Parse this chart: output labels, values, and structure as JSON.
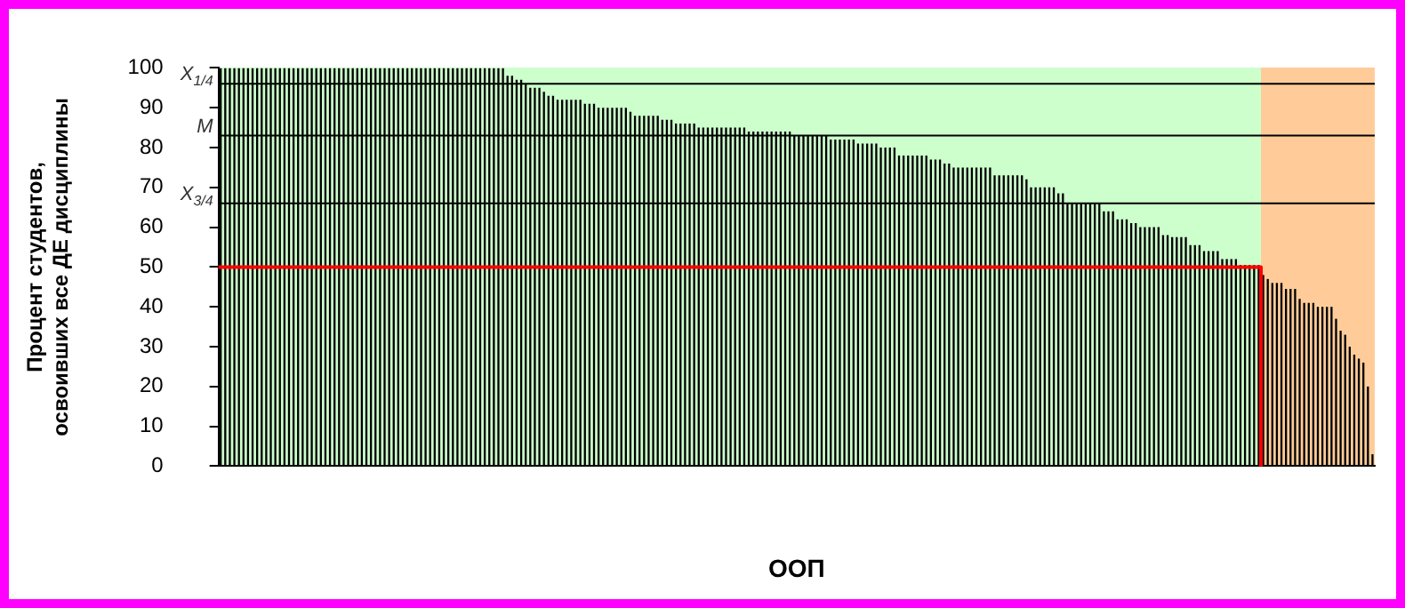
{
  "chart_data": {
    "type": "bar",
    "xlabel": "ООП",
    "ylabel": "Процент студентов, освоивших все ДЕ дисциплины",
    "categories": [
      null,
      null,
      null,
      null,
      null,
      null,
      null,
      null,
      null,
      null,
      null,
      null,
      null,
      null,
      null,
      null,
      null,
      null,
      null,
      null,
      null,
      null,
      null,
      null,
      null,
      null,
      null,
      null,
      null,
      null,
      null,
      null,
      null,
      null,
      null,
      null,
      null,
      null,
      null,
      null,
      null,
      null,
      null,
      null,
      null,
      null,
      null,
      null,
      null,
      null,
      null,
      null,
      null,
      null,
      null,
      null,
      null,
      null,
      null,
      null,
      null,
      null,
      null,
      null,
      null,
      null,
      null,
      null,
      null,
      null,
      null,
      null,
      null,
      null,
      null,
      null,
      null,
      null,
      null,
      null,
      null,
      null,
      null,
      null,
      null,
      null,
      null,
      null,
      null,
      null,
      null,
      null,
      null,
      null,
      null,
      null,
      null,
      null,
      null,
      null,
      null,
      null,
      null,
      null,
      null,
      null,
      null,
      null,
      null,
      null,
      null,
      null,
      null,
      null,
      null,
      null,
      null,
      null,
      null,
      null,
      null,
      null,
      null,
      null,
      null,
      null,
      null,
      null,
      null,
      null,
      null,
      null,
      null,
      null,
      null,
      null,
      null,
      null,
      null,
      null,
      null,
      null,
      null,
      null,
      null,
      null,
      null,
      null,
      null,
      null,
      null,
      null,
      null,
      null,
      null,
      null,
      null,
      null,
      null,
      null,
      null,
      null,
      null,
      null,
      null,
      null,
      null,
      null,
      null,
      null,
      null,
      null,
      null,
      null,
      null,
      null,
      null,
      null,
      null,
      null,
      null,
      null,
      null,
      null,
      null,
      null,
      null,
      null,
      null,
      null,
      null,
      null,
      null,
      null,
      null,
      null,
      null,
      null,
      null,
      null,
      null,
      null,
      null,
      null,
      null,
      null,
      null,
      null,
      null,
      null,
      null,
      null,
      null,
      null,
      null,
      null,
      null,
      null,
      null,
      null,
      null,
      null,
      null,
      null,
      null,
      null,
      null,
      null,
      null,
      null,
      null,
      null,
      null,
      null,
      null,
      null,
      null,
      null,
      null,
      null,
      null,
      null,
      null,
      null,
      null,
      null,
      null,
      null,
      null,
      null,
      null,
      null,
      null,
      null
    ],
    "values": [
      100,
      100,
      100,
      100,
      100,
      100,
      100,
      100,
      100,
      100,
      100,
      100,
      100,
      100,
      100,
      100,
      100,
      100,
      100,
      100,
      100,
      100,
      100,
      100,
      100,
      100,
      100,
      100,
      100,
      100,
      100,
      100,
      100,
      100,
      100,
      100,
      100,
      100,
      100,
      100,
      100,
      100,
      100,
      100,
      100,
      100,
      100,
      100,
      100,
      100,
      100,
      100,
      100,
      100,
      100,
      100,
      100,
      100,
      100,
      100,
      100,
      100,
      100,
      98,
      98,
      97,
      97,
      96,
      95,
      95,
      95,
      94,
      93,
      93,
      92,
      92,
      92,
      92,
      92,
      92,
      91,
      91,
      91,
      90,
      90,
      90,
      90,
      90,
      90,
      90,
      89,
      88,
      88,
      88,
      88,
      88,
      88,
      87,
      87,
      87,
      86,
      86,
      86,
      86,
      86,
      85,
      85,
      85,
      85,
      85,
      85,
      85,
      85,
      85,
      85,
      85,
      84,
      84,
      84,
      84,
      84,
      84,
      84,
      84,
      84,
      84,
      83,
      83,
      83,
      83,
      83,
      83,
      83,
      83,
      82,
      82,
      82,
      82,
      82,
      82,
      81,
      81,
      81,
      81,
      81,
      80,
      80,
      80,
      80,
      78,
      78,
      78,
      78,
      78,
      78,
      78,
      77,
      77,
      77,
      76,
      76,
      75,
      75,
      75,
      75,
      75,
      75,
      75,
      75,
      75,
      73,
      73,
      73,
      73,
      73,
      73,
      73,
      72,
      70,
      70,
      70,
      70,
      70,
      70,
      68.5,
      68.5,
      66,
      66,
      66,
      66,
      66,
      66,
      66,
      66,
      64,
      64,
      64,
      62,
      62,
      62,
      61,
      61,
      60,
      60,
      60,
      60,
      60,
      58,
      58,
      57.5,
      57.5,
      57.5,
      57.5,
      55.5,
      55.5,
      55.5,
      54,
      54,
      54,
      54,
      52,
      52,
      52,
      52,
      50.5,
      50.5,
      50.5,
      50.5,
      50.5,
      48,
      47,
      46,
      46,
      46,
      44.5,
      44.5,
      44.5,
      42,
      41,
      41,
      41,
      40,
      40,
      40,
      40,
      37,
      34,
      33,
      30,
      28,
      27,
      26,
      20,
      3
    ],
    "color": "#000000",
    "ylim": [
      0,
      100
    ],
    "yticks": [
      0,
      10,
      20,
      30,
      40,
      50,
      60,
      70,
      80,
      90,
      100
    ],
    "tick_labels": "y",
    "grid": false,
    "legend": false,
    "ref_lines": [
      {
        "axis": "y",
        "value": 96,
        "label": "X$_{1/4}$",
        "color": "#000000"
      },
      {
        "axis": "y",
        "value": 83,
        "label": "M",
        "color": "#000000"
      },
      {
        "axis": "y",
        "value": 66,
        "label": "X$_{3/4}$",
        "color": "#000000"
      },
      {
        "axis": "y",
        "value": 50,
        "color": "#ff0000"
      }
    ]
  }
}
